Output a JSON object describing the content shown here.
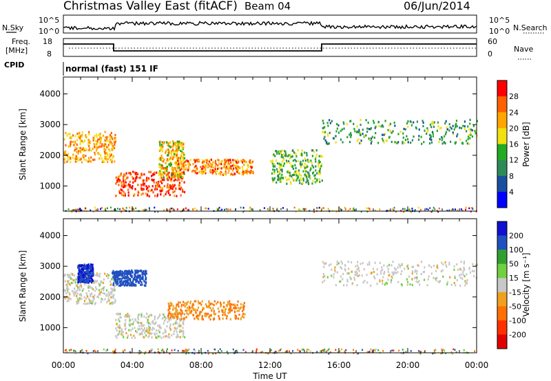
{
  "header": {
    "station": "Christmas Valley East (fitACF)",
    "beam": "Beam 04",
    "date": "06/Jun/2014"
  },
  "aux_panels": {
    "nsky_label": "N.Sky",
    "nsearch_label": "N.Search",
    "noise_ticks": [
      "10^5",
      "10^0"
    ],
    "freq_label": "Freq.",
    "freq_unit": "[MHz]",
    "freq_ticks": [
      "18",
      "8"
    ],
    "nave_label": "Nave",
    "nave_ticks": [
      "60",
      "0"
    ],
    "cpid_label": "CPID",
    "cpid_text": "normal (fast) 151 IF"
  },
  "x_axis": {
    "label": "Time UT",
    "ticks": [
      "00:00",
      "04:00",
      "08:00",
      "12:00",
      "16:00",
      "20:00",
      "00:00"
    ]
  },
  "colors": {
    "power": [
      "#0000ff",
      "#1a4fa0",
      "#2e8b57",
      "#22aa22",
      "#f2e010",
      "#ffa500",
      "#ff6000",
      "#ff0000"
    ],
    "velocity": [
      "#1010d0",
      "#2050c0",
      "#30a030",
      "#70d040",
      "#c8c8c8",
      "#f0a020",
      "#ff7000",
      "#ff3000",
      "#e00000"
    ]
  },
  "chart_data": [
    {
      "type": "heatmap",
      "title": "Power",
      "ylabel": "Slant Range [km]",
      "xlabel": "Time UT",
      "xlim": [
        0,
        24
      ],
      "ylim": [
        180,
        4550
      ],
      "yticks": [
        "1000",
        "2000",
        "3000",
        "4000"
      ],
      "colorbar": {
        "label": "Power [dB]",
        "ticks": [
          "28",
          "24",
          "20",
          "16",
          "12",
          "8",
          "4"
        ],
        "range": [
          0,
          32
        ]
      },
      "features": [
        {
          "name": "early echo band",
          "t": [
            0.0,
            3.0
          ],
          "range_km": [
            1800,
            2800
          ],
          "power_db": 22
        },
        {
          "name": "evening band",
          "t": [
            3.0,
            7.0
          ],
          "range_km": [
            700,
            1500
          ],
          "power_db": 28
        },
        {
          "name": "rising arc",
          "t": [
            5.5,
            7.0
          ],
          "range_km": [
            1300,
            2500
          ],
          "power_db": 20
        },
        {
          "name": "mid band",
          "t": [
            6.5,
            11.0
          ],
          "range_km": [
            1400,
            1900
          ],
          "power_db": 24
        },
        {
          "name": "descending band",
          "t": [
            12.0,
            15.0
          ],
          "range_km": [
            1100,
            2200
          ],
          "power_db": 14
        },
        {
          "name": "upper band",
          "t": [
            15.0,
            24.0
          ],
          "range_km": [
            2400,
            3200
          ],
          "power_db": 12
        }
      ]
    },
    {
      "type": "heatmap",
      "title": "Velocity",
      "ylabel": "Slant Range [km]",
      "xlabel": "Time UT",
      "xlim": [
        0,
        24
      ],
      "ylim": [
        180,
        4550
      ],
      "yticks": [
        "1000",
        "2000",
        "3000",
        "4000"
      ],
      "colorbar": {
        "label": "Velocity [m s⁻¹]",
        "ticks": [
          "200",
          "100",
          "50",
          "15",
          "-15",
          "-50",
          "-100",
          "-200"
        ],
        "range": [
          -250,
          250
        ]
      },
      "features": [
        {
          "name": "ground scatter early",
          "t": [
            0.0,
            3.0
          ],
          "range_km": [
            1800,
            2800
          ],
          "velocity": 0
        },
        {
          "name": "blue patch",
          "t": [
            0.8,
            1.7
          ],
          "range_km": [
            2500,
            3100
          ],
          "velocity": 200
        },
        {
          "name": "positive velocity patch",
          "t": [
            2.8,
            4.8
          ],
          "range_km": [
            2400,
            2900
          ],
          "velocity": 150
        },
        {
          "name": "ground scatter evening",
          "t": [
            3.0,
            7.0
          ],
          "range_km": [
            700,
            1500
          ],
          "velocity": 0
        },
        {
          "name": "negative velocity band",
          "t": [
            6.0,
            10.5
          ],
          "range_km": [
            1300,
            1900
          ],
          "velocity": -50
        },
        {
          "name": "ground scatter late",
          "t": [
            15.0,
            24.0
          ],
          "range_km": [
            2400,
            3200
          ],
          "velocity": 0
        }
      ]
    }
  ]
}
